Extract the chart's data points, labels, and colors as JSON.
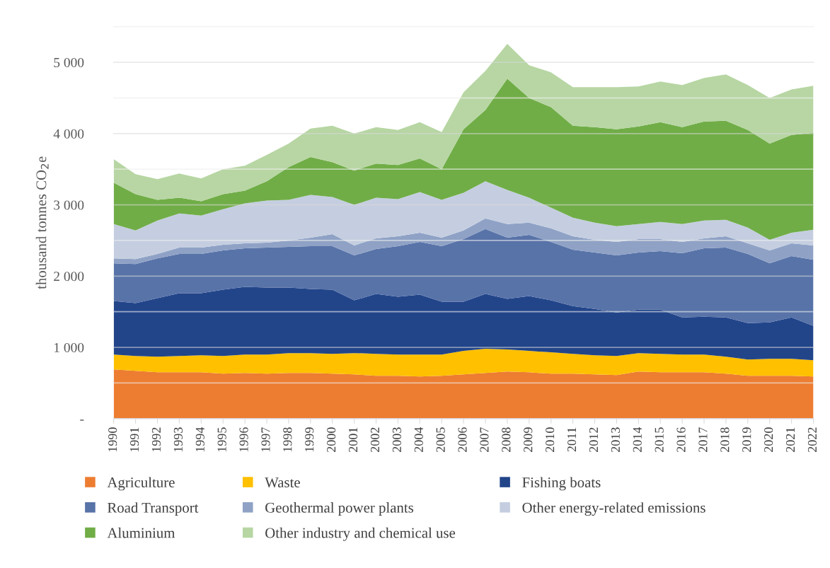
{
  "chart_data": {
    "type": "area",
    "stacked": true,
    "ylabel": "thousand tonnes CO$_{2}$e",
    "categories": [
      "1990",
      "1991",
      "1992",
      "1993",
      "1994",
      "1995",
      "1996",
      "1997",
      "1998",
      "1999",
      "2000",
      "2001",
      "2002",
      "2003",
      "2004",
      "2005",
      "2006",
      "2007",
      "2008",
      "2009",
      "2010",
      "2011",
      "2012",
      "2013",
      "2014",
      "2015",
      "2016",
      "2017",
      "2018",
      "2019",
      "2020",
      "2021",
      "2022"
    ],
    "series": [
      {
        "name": "Agriculture",
        "color": "#ed7d31",
        "values": [
          690,
          670,
          650,
          650,
          650,
          630,
          640,
          630,
          640,
          640,
          630,
          620,
          600,
          600,
          590,
          600,
          620,
          640,
          660,
          650,
          630,
          630,
          620,
          610,
          660,
          650,
          650,
          650,
          630,
          600,
          600,
          600,
          590
        ]
      },
      {
        "name": "Waste",
        "color": "#ffc000",
        "values": [
          210,
          210,
          220,
          230,
          240,
          250,
          260,
          270,
          280,
          280,
          280,
          300,
          310,
          300,
          310,
          300,
          330,
          340,
          310,
          300,
          300,
          280,
          270,
          270,
          260,
          260,
          250,
          250,
          240,
          230,
          240,
          240,
          230
        ]
      },
      {
        "name": "Fishing boats",
        "color": "#22458a",
        "values": [
          750,
          740,
          820,
          880,
          870,
          930,
          950,
          940,
          920,
          900,
          900,
          740,
          840,
          810,
          840,
          740,
          690,
          770,
          710,
          770,
          730,
          670,
          650,
          610,
          610,
          620,
          520,
          530,
          550,
          510,
          510,
          580,
          480
        ]
      },
      {
        "name": "Road Transport",
        "color": "#5873a8",
        "values": [
          530,
          550,
          560,
          550,
          550,
          550,
          540,
          560,
          570,
          600,
          610,
          630,
          630,
          710,
          740,
          780,
          880,
          910,
          860,
          860,
          820,
          790,
          790,
          800,
          800,
          820,
          900,
          960,
          980,
          970,
          830,
          860,
          930
        ]
      },
      {
        "name": "Geothermal power plants",
        "color": "#8fa2c6",
        "values": [
          70,
          70,
          60,
          90,
          90,
          80,
          70,
          70,
          90,
          120,
          170,
          140,
          150,
          140,
          130,
          120,
          120,
          150,
          190,
          170,
          190,
          190,
          180,
          190,
          190,
          170,
          160,
          140,
          160,
          150,
          180,
          180,
          200
        ]
      },
      {
        "name": "Other energy-related emissions",
        "color": "#c5cee0",
        "values": [
          480,
          400,
          470,
          480,
          450,
          500,
          560,
          590,
          570,
          600,
          520,
          570,
          570,
          520,
          570,
          530,
          530,
          520,
          480,
          350,
          290,
          260,
          240,
          220,
          210,
          240,
          250,
          250,
          230,
          220,
          150,
          150,
          220
        ]
      },
      {
        "name": "Aluminium",
        "color": "#70ad47",
        "values": [
          580,
          510,
          290,
          220,
          200,
          210,
          180,
          270,
          460,
          530,
          490,
          480,
          480,
          480,
          470,
          430,
          890,
          1000,
          1560,
          1400,
          1410,
          1290,
          1340,
          1360,
          1370,
          1400,
          1360,
          1390,
          1390,
          1370,
          1350,
          1370,
          1360
        ]
      },
      {
        "name": "Other industry and chemical use",
        "color": "#b7d6a3",
        "values": [
          330,
          280,
          290,
          340,
          320,
          350,
          350,
          370,
          330,
          400,
          510,
          520,
          510,
          490,
          510,
          520,
          520,
          550,
          490,
          460,
          490,
          540,
          560,
          590,
          560,
          570,
          590,
          610,
          650,
          630,
          640,
          640,
          660
        ]
      }
    ],
    "ylim": [
      0,
      5500
    ],
    "yticks": [
      {
        "value": 0,
        "label": "-"
      },
      {
        "value": 500,
        "label": null
      },
      {
        "value": 1000,
        "label": "1 000"
      },
      {
        "value": 1500,
        "label": null
      },
      {
        "value": 2000,
        "label": "2 000"
      },
      {
        "value": 2500,
        "label": null
      },
      {
        "value": 3000,
        "label": "3 000"
      },
      {
        "value": 3500,
        "label": null
      },
      {
        "value": 4000,
        "label": "4 000"
      },
      {
        "value": 4500,
        "label": null
      },
      {
        "value": 5000,
        "label": "5 000"
      },
      {
        "value": 5500,
        "label": null
      }
    ],
    "grid": "y",
    "legend": "bottom"
  }
}
